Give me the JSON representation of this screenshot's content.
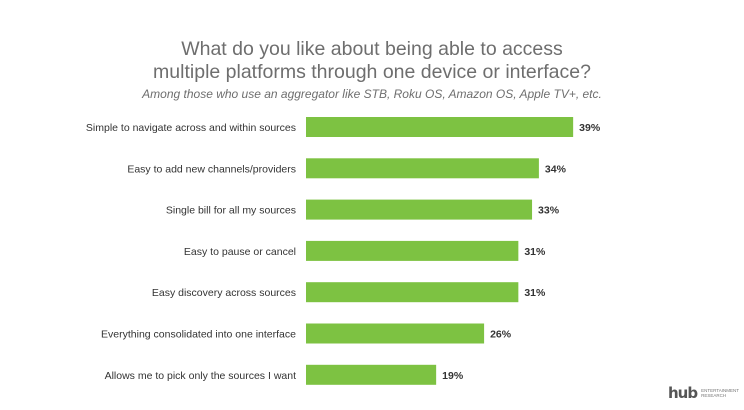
{
  "header": {
    "title_line1": "What do you like about being able to access",
    "title_line2": "multiple platforms through one device or interface?",
    "subtitle": "Among those who use an aggregator like  STB, Roku OS, Amazon OS, Apple TV+, etc."
  },
  "chart_data": {
    "type": "bar",
    "orientation": "horizontal",
    "categories": [
      "Simple to navigate across and within sources",
      "Easy to add new channels/providers",
      "Single bill for all my sources",
      "Easy to pause or cancel",
      "Easy discovery across sources",
      "Everything consolidated into one interface",
      "Allows me to pick only the sources I want"
    ],
    "values": [
      39,
      34,
      33,
      31,
      31,
      26,
      19
    ],
    "value_labels": [
      "39%",
      "34%",
      "33%",
      "31%",
      "31%",
      "26%",
      "19%"
    ],
    "unit": "%",
    "bar_color": "#7dc242",
    "grid": false,
    "legend": "none"
  },
  "logo": {
    "mark": "hub",
    "text_line1": "ENTERTAINMENT",
    "text_line2": "RESEARCH"
  }
}
